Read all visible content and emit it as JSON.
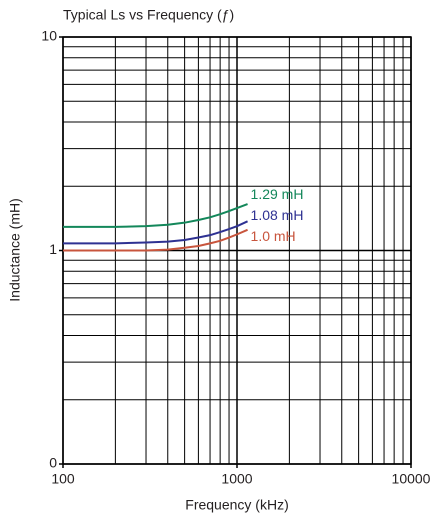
{
  "chart_data": {
    "type": "line",
    "title": "Typical Ls vs Frequency (ƒ)",
    "x_label": "Frequency (kHz)",
    "y_label": "Inductance (mH)",
    "x": [
      100,
      200,
      300,
      400,
      500,
      600,
      700,
      800,
      900,
      1000,
      1150
    ],
    "series": [
      {
        "name": "1.29 mH",
        "color": "#13875a",
        "values": [
          1.29,
          1.29,
          1.3,
          1.32,
          1.35,
          1.39,
          1.43,
          1.48,
          1.53,
          1.58,
          1.65
        ]
      },
      {
        "name": "1.08 mH",
        "color": "#2e3192",
        "values": [
          1.08,
          1.08,
          1.09,
          1.1,
          1.12,
          1.15,
          1.18,
          1.22,
          1.26,
          1.3,
          1.37
        ]
      },
      {
        "name": "1.0 mH",
        "color": "#c8553d",
        "values": [
          1.0,
          1.0,
          1.0,
          1.01,
          1.03,
          1.05,
          1.08,
          1.11,
          1.15,
          1.19,
          1.25
        ]
      }
    ],
    "xlim": [
      100,
      10000
    ],
    "xticks": [
      100,
      1000,
      10000
    ],
    "ylim": [
      0.1,
      10
    ],
    "yticks": [
      {
        "value": 0.1,
        "label": "0"
      },
      1,
      10
    ],
    "x_log": true,
    "y_log": true,
    "grid": true
  }
}
